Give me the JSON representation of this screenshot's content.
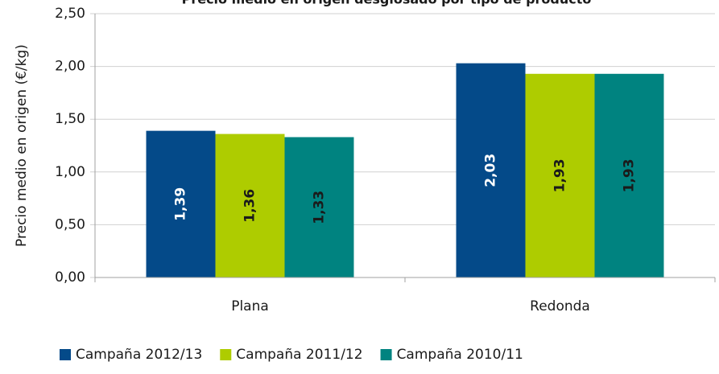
{
  "chart_data": {
    "type": "bar",
    "title": "Precio medio en origen desglosado por tipo de producto",
    "y_label": "Precio medio en origen (€/kg)",
    "categories": [
      "Plana",
      "Redonda"
    ],
    "series": [
      {
        "name": "Campaña 2012/13",
        "color": "#044a89",
        "label_color": "#ffffff",
        "values": [
          1.39,
          2.03
        ],
        "value_labels": [
          "1,39",
          "2,03"
        ]
      },
      {
        "name": "Campaña 2011/12",
        "color": "#aecc00",
        "label_color": "#1a1a1a",
        "values": [
          1.36,
          1.93
        ],
        "value_labels": [
          "1,36",
          "1,93"
        ]
      },
      {
        "name": "Campaña 2010/11",
        "color": "#008380",
        "label_color": "#1a1a1a",
        "values": [
          1.33,
          1.93
        ],
        "value_labels": [
          "1,33",
          "1,93"
        ]
      }
    ],
    "ylim": [
      0,
      2.5
    ],
    "yticks": [
      {
        "value": 0,
        "label": "0,00"
      },
      {
        "value": 0.5,
        "label": "0,50"
      },
      {
        "value": 1,
        "label": "1,00"
      },
      {
        "value": 1.5,
        "label": "1,50"
      },
      {
        "value": 2,
        "label": "2,00"
      },
      {
        "value": 2.5,
        "label": "2,50"
      }
    ],
    "grid": true,
    "legend": "bottom"
  }
}
